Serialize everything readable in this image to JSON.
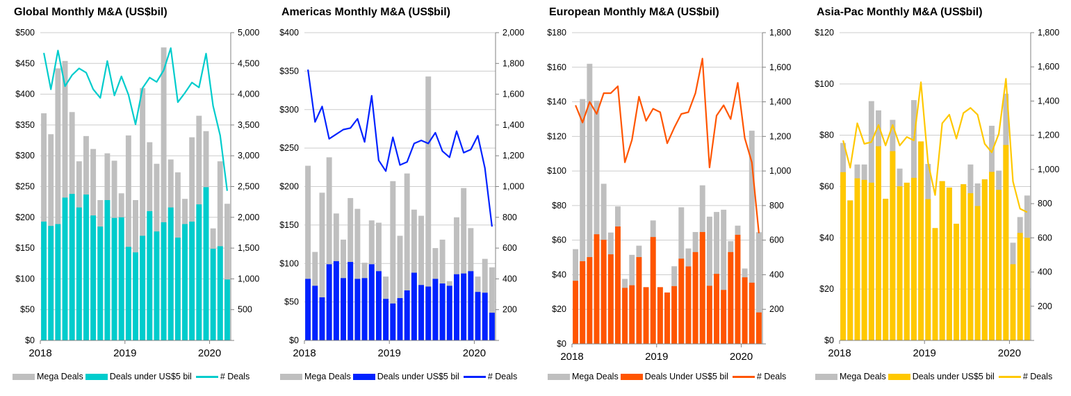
{
  "colors": {
    "mega": "#bfbfbf",
    "grid": "#cccccc",
    "axis": "#808080"
  },
  "chart_data": [
    {
      "type": "bar",
      "title": "Global Monthly M&A (US$bil)",
      "stacked": true,
      "dual_axis": true,
      "x_ticks": [
        "2018",
        "2019",
        "2020"
      ],
      "x_tick_index": [
        0,
        12,
        24
      ],
      "categories": [
        "2018-01",
        "2018-02",
        "2018-03",
        "2018-04",
        "2018-05",
        "2018-06",
        "2018-07",
        "2018-08",
        "2018-09",
        "2018-10",
        "2018-11",
        "2018-12",
        "2019-01",
        "2019-02",
        "2019-03",
        "2019-04",
        "2019-05",
        "2019-06",
        "2019-07",
        "2019-08",
        "2019-09",
        "2019-10",
        "2019-11",
        "2019-12",
        "2020-01",
        "2020-02",
        "2020-03"
      ],
      "ylim_left": [
        0,
        500
      ],
      "yticks_left": [
        "$0",
        "$50",
        "$100",
        "$150",
        "$200",
        "$250",
        "$300",
        "$350",
        "$400",
        "$450",
        "$500"
      ],
      "ylim_right": [
        0,
        5000
      ],
      "yticks_right": [
        "",
        "500",
        "1,000",
        "1,500",
        "2,000",
        "2,500",
        "3,000",
        "3,500",
        "4,000",
        "4,500",
        "5,000"
      ],
      "accent": "#00cccc",
      "series": [
        {
          "name": "Deals under US$5 bil",
          "kind": "bar",
          "values": [
            193,
            186,
            189,
            232,
            238,
            216,
            237,
            203,
            185,
            228,
            199,
            200,
            152,
            143,
            170,
            210,
            177,
            192,
            216,
            167,
            189,
            193,
            221,
            249,
            149,
            153,
            99
          ]
        },
        {
          "name": "Mega Deals",
          "kind": "bar-total",
          "values": [
            369,
            335,
            442,
            454,
            371,
            291,
            332,
            311,
            228,
            304,
            292,
            239,
            333,
            228,
            410,
            322,
            287,
            476,
            294,
            273,
            230,
            330,
            365,
            340,
            182,
            291,
            222
          ]
        },
        {
          "name": "# Deals",
          "kind": "line",
          "values": [
            4670,
            4080,
            4710,
            4130,
            4310,
            4420,
            4350,
            4080,
            3940,
            4540,
            3980,
            4290,
            3990,
            3510,
            4100,
            4270,
            4200,
            4390,
            4750,
            3870,
            4020,
            4190,
            4110,
            4660,
            3810,
            3330,
            2430
          ]
        }
      ],
      "legend": [
        "Mega Deals",
        "Deals under US$5 bil",
        "# Deals"
      ]
    },
    {
      "type": "bar",
      "title": "Americas Monthly M&A (US$bil)",
      "stacked": true,
      "dual_axis": true,
      "x_ticks": [
        "2018",
        "2019",
        "2020"
      ],
      "x_tick_index": [
        0,
        12,
        24
      ],
      "categories": [
        "2018-01",
        "2018-02",
        "2018-03",
        "2018-04",
        "2018-05",
        "2018-06",
        "2018-07",
        "2018-08",
        "2018-09",
        "2018-10",
        "2018-11",
        "2018-12",
        "2019-01",
        "2019-02",
        "2019-03",
        "2019-04",
        "2019-05",
        "2019-06",
        "2019-07",
        "2019-08",
        "2019-09",
        "2019-10",
        "2019-11",
        "2019-12",
        "2020-01",
        "2020-02",
        "2020-03"
      ],
      "ylim_left": [
        0,
        400
      ],
      "yticks_left": [
        "$0",
        "$50",
        "$100",
        "$150",
        "$200",
        "$250",
        "$300",
        "$350",
        "$400"
      ],
      "ylim_right": [
        0,
        2000
      ],
      "yticks_right": [
        "",
        "200",
        "400",
        "600",
        "800",
        "1,000",
        "1,200",
        "1,400",
        "1,600",
        "1,800",
        "2,000"
      ],
      "accent": "#0022ff",
      "series": [
        {
          "name": "Deals under US$5 bil",
          "kind": "bar",
          "values": [
            80,
            71,
            56,
            99,
            103,
            81,
            102,
            80,
            81,
            99,
            90,
            54,
            48,
            55,
            65,
            88,
            72,
            70,
            80,
            74,
            71,
            86,
            87,
            90,
            63,
            62,
            36
          ]
        },
        {
          "name": "Mega Deals",
          "kind": "bar-total",
          "values": [
            227,
            115,
            192,
            238,
            165,
            131,
            185,
            171,
            101,
            156,
            153,
            83,
            207,
            136,
            217,
            170,
            162,
            343,
            120,
            131,
            77,
            160,
            198,
            146,
            83,
            106,
            95
          ]
        },
        {
          "name": "# Deals",
          "kind": "line",
          "values": [
            1760,
            1420,
            1520,
            1310,
            1340,
            1370,
            1380,
            1440,
            1290,
            1590,
            1170,
            1100,
            1320,
            1140,
            1160,
            1280,
            1300,
            1280,
            1350,
            1230,
            1190,
            1360,
            1220,
            1240,
            1330,
            1120,
            740
          ]
        }
      ],
      "legend": [
        "Mega Deals",
        "Deals under US$5 bil",
        "# Deals"
      ]
    },
    {
      "type": "bar",
      "title": "European Monthly M&A (US$bil)",
      "stacked": true,
      "dual_axis": true,
      "x_ticks": [
        "2018",
        "2019",
        "2020"
      ],
      "x_tick_index": [
        0,
        12,
        24
      ],
      "categories": [
        "2018-01",
        "2018-02",
        "2018-03",
        "2018-04",
        "2018-05",
        "2018-06",
        "2018-07",
        "2018-08",
        "2018-09",
        "2018-10",
        "2018-11",
        "2018-12",
        "2019-01",
        "2019-02",
        "2019-03",
        "2019-04",
        "2019-05",
        "2019-06",
        "2019-07",
        "2019-08",
        "2019-09",
        "2019-10",
        "2019-11",
        "2019-12",
        "2020-01",
        "2020-02",
        "2020-03"
      ],
      "ylim_left": [
        0,
        180
      ],
      "yticks_left": [
        "$0",
        "$20",
        "$40",
        "$60",
        "$80",
        "$100",
        "$120",
        "$140",
        "$160",
        "$180"
      ],
      "ylim_right": [
        0,
        1800
      ],
      "yticks_right": [
        "",
        "200",
        "400",
        "600",
        "800",
        "1,000",
        "1,200",
        "1,400",
        "1,600",
        "1,800"
      ],
      "accent": "#ff5500",
      "series": [
        {
          "name": "Deals Under US$5 bil",
          "kind": "bar",
          "values": [
            36.5,
            47.8,
            50.2,
            63.4,
            60.2,
            51.8,
            67.9,
            32.4,
            33.9,
            50.2,
            32.8,
            61.8,
            32.8,
            29.7,
            33.4,
            49.3,
            44.8,
            53.1,
            64.7,
            33.6,
            40.5,
            31.2,
            53.1,
            63.1,
            38.5,
            35.4,
            18.2
          ]
        },
        {
          "name": "Mega Deals",
          "kind": "bar-total",
          "values": [
            54.8,
            141.6,
            162,
            140.6,
            92.6,
            64.4,
            79.5,
            37.6,
            51.5,
            56.8,
            32.8,
            71.4,
            32.8,
            29.7,
            44.9,
            79,
            55.2,
            64.7,
            91.7,
            73.6,
            76.3,
            77.6,
            59.4,
            68.4,
            43.6,
            123.3,
            64.6
          ]
        },
        {
          "name": "# Deals",
          "kind": "line",
          "values": [
            1380,
            1280,
            1400,
            1330,
            1450,
            1450,
            1490,
            1050,
            1180,
            1430,
            1290,
            1360,
            1340,
            1160,
            1250,
            1330,
            1340,
            1450,
            1650,
            1020,
            1320,
            1380,
            1300,
            1510,
            1190,
            1050,
            640
          ]
        }
      ],
      "legend": [
        "Mega Deals",
        "Deals Under US$5 bil",
        "# Deals"
      ]
    },
    {
      "type": "bar",
      "title": "Asia-Pac Monthly M&A (US$bil)",
      "stacked": true,
      "dual_axis": true,
      "x_ticks": [
        "2018",
        "2019",
        "2020"
      ],
      "x_tick_index": [
        0,
        12,
        24
      ],
      "categories": [
        "2018-01",
        "2018-02",
        "2018-03",
        "2018-04",
        "2018-05",
        "2018-06",
        "2018-07",
        "2018-08",
        "2018-09",
        "2018-10",
        "2018-11",
        "2018-12",
        "2019-01",
        "2019-02",
        "2019-03",
        "2019-04",
        "2019-05",
        "2019-06",
        "2019-07",
        "2019-08",
        "2019-09",
        "2019-10",
        "2019-11",
        "2019-12",
        "2020-01",
        "2020-02",
        "2020-03"
      ],
      "ylim_left": [
        0,
        120
      ],
      "yticks_left": [
        "$0",
        "$20",
        "$40",
        "$60",
        "$80",
        "$100",
        "$120"
      ],
      "ylim_right": [
        0,
        1800
      ],
      "yticks_right": [
        "",
        "200",
        "400",
        "600",
        "800",
        "1,000",
        "1,200",
        "1,400",
        "1,600",
        "1,800"
      ],
      "accent": "#ffc800",
      "series": [
        {
          "name": "Deals under US$5 bil",
          "kind": "bar",
          "values": [
            65.6,
            54.6,
            63.2,
            62.6,
            61.5,
            75.7,
            55.2,
            73.8,
            60.1,
            61.5,
            63.4,
            77.6,
            55.1,
            43.8,
            62.1,
            59.6,
            45.5,
            60.9,
            57.4,
            52.4,
            62.8,
            65.7,
            58.7,
            76.2,
            29.7,
            41.9,
            40
          ]
        },
        {
          "name": "Mega Deals",
          "kind": "bar-total",
          "values": [
            77,
            54.6,
            68.6,
            68.6,
            93.3,
            89.7,
            55.2,
            86,
            67,
            61.5,
            93.7,
            77.6,
            68.8,
            43.8,
            62.1,
            59.6,
            45.5,
            60.9,
            68.6,
            61.2,
            62.8,
            83.7,
            66.2,
            96.2,
            38.1,
            48.1,
            56.5
          ]
        },
        {
          "name": "# Deals",
          "kind": "line",
          "values": [
            1170,
            1010,
            1270,
            1150,
            1160,
            1260,
            1140,
            1260,
            1140,
            1190,
            1170,
            1510,
            1040,
            850,
            1270,
            1320,
            1180,
            1330,
            1360,
            1320,
            1150,
            1100,
            1210,
            1530,
            930,
            770,
            750
          ]
        }
      ],
      "legend": [
        "Mega Deals",
        "Deals under US$5 bil",
        "# Deals"
      ]
    }
  ]
}
